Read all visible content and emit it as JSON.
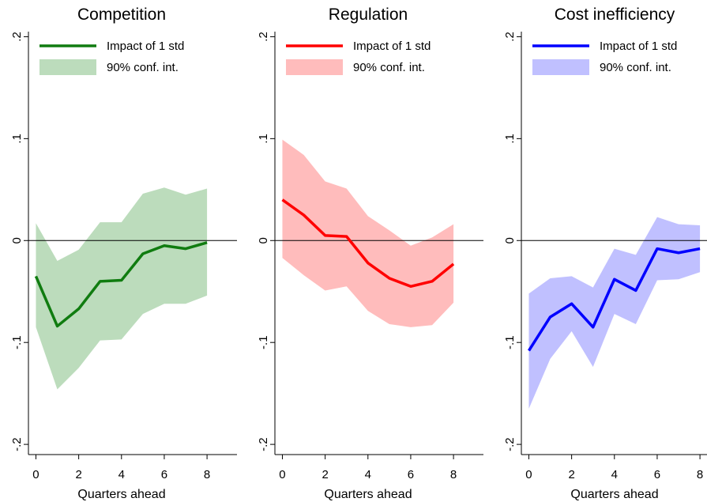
{
  "chart_data": [
    {
      "type": "line",
      "title": "Competition",
      "xlabel": "Quarters ahead",
      "x": [
        0,
        1,
        2,
        3,
        4,
        5,
        6,
        7,
        8
      ],
      "xlim": [
        -0.35,
        9.4
      ],
      "xticks": [
        0,
        2,
        4,
        6,
        8
      ],
      "ylim": [
        -0.21,
        0.205
      ],
      "yticks": [
        {
          "value": -0.2,
          "label": "-.2"
        },
        {
          "value": -0.1,
          "label": "-.1"
        },
        0,
        {
          "value": 0.1,
          "label": ".1"
        },
        {
          "value": 0.2,
          "label": ".2"
        }
      ],
      "series": [
        {
          "name": "Impact of 1 std",
          "color": "#107c10",
          "values": [
            -0.035,
            -0.084,
            -0.067,
            -0.04,
            -0.039,
            -0.013,
            -0.005,
            -0.008,
            -0.002
          ]
        },
        {
          "name": "90% conf. int.",
          "color": "#bcdcbc",
          "upper": [
            0.017,
            -0.02,
            -0.009,
            0.018,
            0.018,
            0.046,
            0.052,
            0.045,
            0.051
          ],
          "lower": [
            -0.085,
            -0.146,
            -0.125,
            -0.098,
            -0.097,
            -0.072,
            -0.062,
            -0.062,
            -0.054
          ]
        }
      ]
    },
    {
      "type": "line",
      "title": "Regulation",
      "xlabel": "Quarters ahead",
      "x": [
        0,
        1,
        2,
        3,
        4,
        5,
        6,
        7,
        8
      ],
      "xlim": [
        -0.35,
        9.4
      ],
      "xticks": [
        0,
        2,
        4,
        6,
        8
      ],
      "ylim": [
        -0.21,
        0.205
      ],
      "yticks": [
        {
          "value": -0.2,
          "label": "-.2"
        },
        {
          "value": -0.1,
          "label": "-.1"
        },
        0,
        {
          "value": 0.1,
          "label": ".1"
        },
        {
          "value": 0.2,
          "label": ".2"
        }
      ],
      "series": [
        {
          "name": "Impact of 1 std",
          "color": "#ff0000",
          "values": [
            0.04,
            0.025,
            0.005,
            0.004,
            -0.022,
            -0.037,
            -0.045,
            -0.04,
            -0.023
          ]
        },
        {
          "name": "90% conf. int.",
          "color": "#ffbcbc",
          "upper": [
            0.099,
            0.084,
            0.058,
            0.051,
            0.024,
            0.01,
            -0.005,
            0.003,
            0.016
          ],
          "lower": [
            -0.017,
            -0.034,
            -0.049,
            -0.045,
            -0.069,
            -0.082,
            -0.085,
            -0.083,
            -0.061
          ]
        }
      ]
    },
    {
      "type": "line",
      "title": "Cost inefficiency",
      "xlabel": "Quarters ahead",
      "x": [
        0,
        1,
        2,
        3,
        4,
        5,
        6,
        7,
        8
      ],
      "xlim": [
        -0.35,
        9.4
      ],
      "xticks": [
        0,
        2,
        4,
        6,
        8
      ],
      "ylim": [
        -0.21,
        0.205
      ],
      "yticks": [
        {
          "value": -0.2,
          "label": "-.2"
        },
        {
          "value": -0.1,
          "label": "-.1"
        },
        0,
        {
          "value": 0.1,
          "label": ".1"
        },
        {
          "value": 0.2,
          "label": ".2"
        }
      ],
      "series": [
        {
          "name": "Impact of 1 std",
          "color": "#0000ff",
          "values": [
            -0.108,
            -0.075,
            -0.062,
            -0.085,
            -0.038,
            -0.049,
            -0.008,
            -0.012,
            -0.008
          ]
        },
        {
          "name": "90% conf. int.",
          "color": "#c0c0ff",
          "upper": [
            -0.052,
            -0.037,
            -0.035,
            -0.046,
            -0.008,
            -0.014,
            0.023,
            0.016,
            0.015
          ],
          "lower": [
            -0.165,
            -0.116,
            -0.089,
            -0.124,
            -0.072,
            -0.082,
            -0.039,
            -0.038,
            -0.031
          ]
        }
      ]
    }
  ]
}
